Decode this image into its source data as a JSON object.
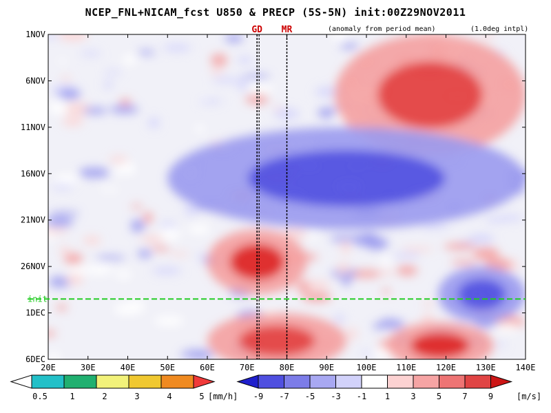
{
  "title": "NCEP_FNL+NICAM_fcst U850 & PRECP (5S-5N) init:00Z29NOV2011",
  "subtitle_anomaly": "(anomaly from period mean)",
  "subtitle_interp": "(1.0deg intpl)",
  "markers": [
    {
      "label": "GD",
      "lon": 72.5
    },
    {
      "label": "MR",
      "lon": 80
    }
  ],
  "init_line": {
    "label": "init",
    "date_index": 28.5,
    "color": "#22cc22"
  },
  "colors": {
    "strong_westerly": "#dd2222",
    "westerly": "#f4a0a0",
    "weak_westerly": "#fcd6d6",
    "neutral": "#ffffff",
    "weak_easterly": "#d6d6fc",
    "easterly": "#9a9aee",
    "strong_easterly": "#3a3add",
    "init_line": "#22cc22",
    "marker": "#000000"
  },
  "chart_data": {
    "type": "heatmap",
    "title": "NCEP_FNL+NICAM_fcst U850 & PRECP (5S-5N) init:00Z29NOV2011",
    "xlabel": "",
    "ylabel": "",
    "x_ticks": [
      "20E",
      "30E",
      "40E",
      "50E",
      "60E",
      "70E",
      "80E",
      "90E",
      "100E",
      "110E",
      "120E",
      "130E",
      "140E"
    ],
    "x_range": [
      20,
      140
    ],
    "y_ticks": [
      "1NOV",
      "6NOV",
      "11NOV",
      "16NOV",
      "21NOV",
      "26NOV",
      "1DEC",
      "6DEC"
    ],
    "y_range": [
      "1NOV",
      "6DEC"
    ],
    "grid": false,
    "u850_anomaly_colorbar": {
      "unit": "[m/s]",
      "tick_labels": [
        "-9",
        "-7",
        "-5",
        "-3",
        "-1",
        "1",
        "3",
        "5",
        "7",
        "9"
      ],
      "colors": [
        "#1f1fcc",
        "#4f4fe0",
        "#7c7ce8",
        "#a8a8f2",
        "#d2d2fa",
        "#ffffff",
        "#fcd2d2",
        "#f6a4a4",
        "#ee7474",
        "#e04444",
        "#cc1616"
      ]
    },
    "precip_colorbar": {
      "unit": "[mm/h]",
      "tick_labels": [
        "0.5",
        "1",
        "2",
        "3",
        "4",
        "5"
      ],
      "colors": [
        "#ffffff",
        "#22c0c8",
        "#20b070",
        "#f2f27a",
        "#f0c830",
        "#f08a20",
        "#f03a3a"
      ]
    },
    "features": [
      {
        "kind": "westerly",
        "lon_range": [
          60,
          85
        ],
        "date_range": [
          "22NOV",
          "28NOV"
        ],
        "approx_max": 9
      },
      {
        "kind": "westerly",
        "lon_range": [
          92,
          140
        ],
        "date_range": [
          "1NOV",
          "13NOV"
        ],
        "approx_max": 7
      },
      {
        "kind": "easterly",
        "lon_range": [
          50,
          140
        ],
        "date_range": [
          "11NOV",
          "21NOV"
        ],
        "approx_min": -7
      },
      {
        "kind": "westerly",
        "lon_range": [
          60,
          95
        ],
        "date_range": [
          "1DEC",
          "6DEC"
        ],
        "approx_max": 7
      },
      {
        "kind": "westerly",
        "lon_range": [
          105,
          132
        ],
        "date_range": [
          "2DEC",
          "6DEC"
        ],
        "approx_max": 9
      },
      {
        "kind": "easterly",
        "lon_range": [
          118,
          140
        ],
        "date_range": [
          "26NOV",
          "1DEC"
        ],
        "approx_min": -7
      }
    ]
  }
}
